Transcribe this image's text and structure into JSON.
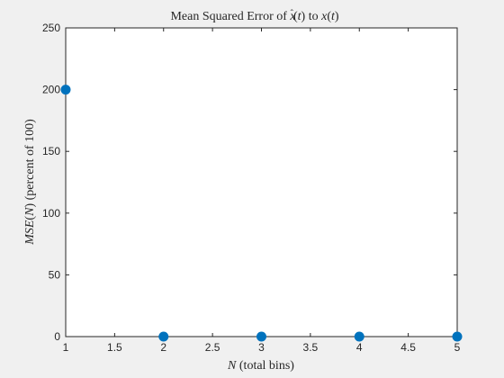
{
  "chart_data": {
    "type": "scatter",
    "title": "Mean Squared Error of x̂(t) to x(t)",
    "xlabel": "N (total bins)",
    "ylabel": "MSE(N) (percent of 100)",
    "xlim": [
      1,
      5
    ],
    "ylim": [
      0,
      250
    ],
    "x_ticks": [
      "1",
      "1.5",
      "2",
      "2.5",
      "3",
      "3.5",
      "4",
      "4.5",
      "5"
    ],
    "y_ticks": [
      "0",
      "50",
      "100",
      "150",
      "200",
      "250"
    ],
    "grid": false,
    "series": [
      {
        "x": [
          1,
          2,
          3,
          4,
          5
        ],
        "y": [
          200,
          0,
          0,
          0,
          0
        ]
      }
    ],
    "colors": {
      "marker": "#0072BD",
      "axes": "#262626",
      "plot_background": "#ffffff",
      "figure_background": "#f0f0f0"
    }
  }
}
